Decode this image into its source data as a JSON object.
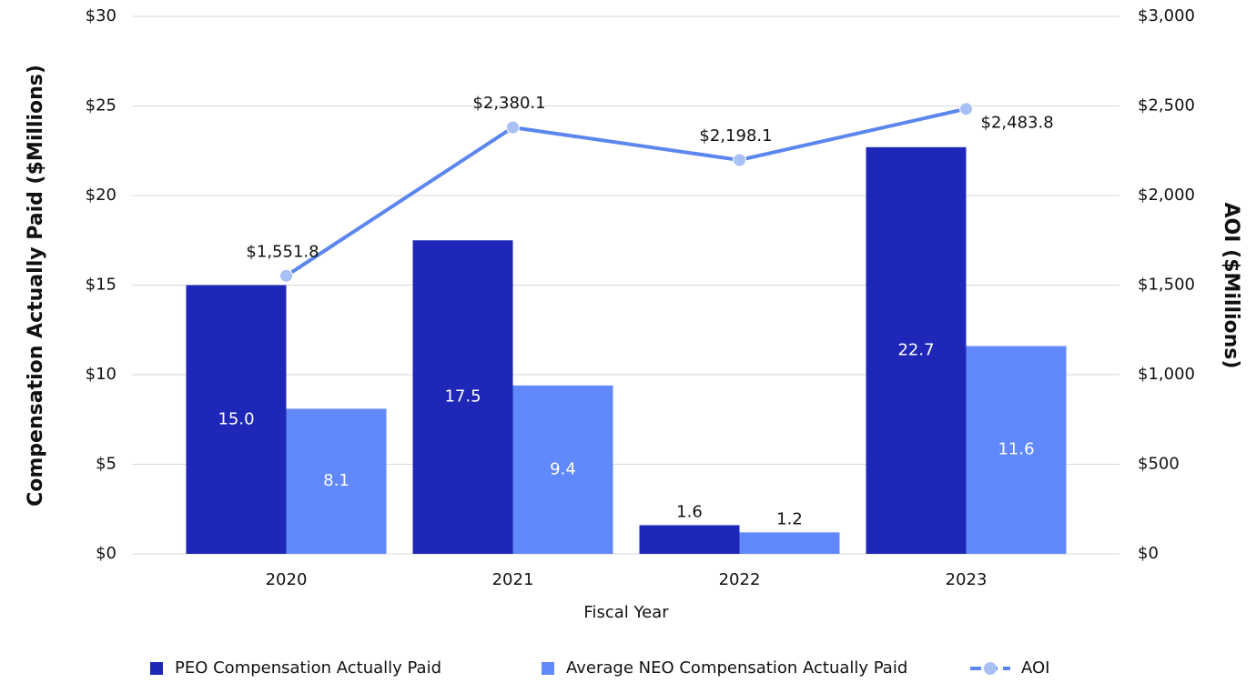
{
  "chart_data": {
    "type": "bar",
    "x_label": "Fiscal Year",
    "y_label": "Compensation Actually Paid ($Millions)",
    "y2_label": "AOI ($Millions)",
    "categories": [
      "2020",
      "2021",
      "2022",
      "2023"
    ],
    "series": [
      {
        "name": "PEO Compensation Actually Paid",
        "type": "bar",
        "color": "#1f27b8",
        "values": [
          15,
          17.5,
          1.6,
          22.7
        ],
        "value_labels": [
          "15.0",
          "17.5",
          "1.6",
          "22.7"
        ]
      },
      {
        "name": "Average NEO Compensation Actually Paid",
        "type": "bar",
        "color": "#6189fb",
        "values": [
          8.1,
          9.4,
          1.2,
          11.6
        ]
      },
      {
        "name": "AOI",
        "type": "line",
        "axis": "y2",
        "color": "#5b86ee",
        "marker_color": "#a9c0f5",
        "values": [
          1551.8,
          2380.1,
          2198.1,
          2483.8
        ],
        "value_labels": [
          "$1,551.8",
          "$2,380.1",
          "$2,198.1",
          "$2,483.8"
        ]
      }
    ],
    "ylim": [
      0,
      30
    ],
    "yticks": [
      {
        "value": 0,
        "label": "$0"
      },
      {
        "value": 5,
        "label": "$5"
      },
      {
        "value": 10,
        "label": "$10"
      },
      {
        "value": 15,
        "label": "$15"
      },
      {
        "value": 20,
        "label": "$20"
      },
      {
        "value": 25,
        "label": "$25"
      },
      {
        "value": 30,
        "label": "$30"
      }
    ],
    "y2lim": [
      0,
      3000
    ],
    "y2ticks": [
      {
        "value": 0,
        "label": "$0"
      },
      {
        "value": 500,
        "label": "$500"
      },
      {
        "value": 1000,
        "label": "$1,000"
      },
      {
        "value": 1500,
        "label": "$1,500"
      },
      {
        "value": 2000,
        "label": "$2,000"
      },
      {
        "value": 2500,
        "label": "$2,500"
      },
      {
        "value": 3000,
        "label": "$3,000"
      }
    ],
    "grid": true,
    "legend": "bottom"
  }
}
